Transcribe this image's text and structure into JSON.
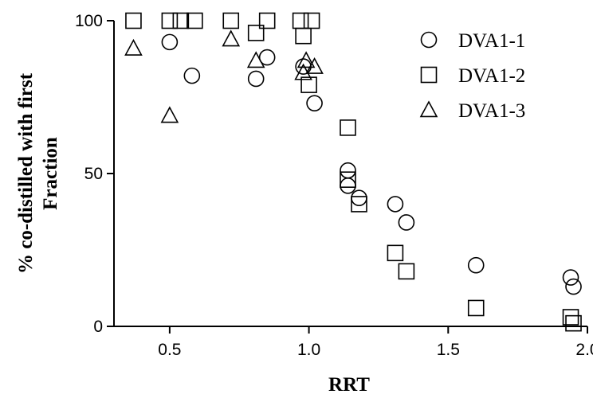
{
  "chart_data": {
    "type": "scatter",
    "title": "",
    "xlabel": "RRT",
    "ylabel": [
      "% co-distilled with first",
      "Fraction"
    ],
    "xlim": [
      0.3,
      2.0
    ],
    "ylim": [
      0,
      100
    ],
    "xticks": [
      "0.5",
      "1.0",
      "1.5",
      "2.0"
    ],
    "yticks": [
      "0",
      "50",
      "100"
    ],
    "grid": false,
    "legend_position": "top-right",
    "series": [
      {
        "name": "DVA1-1",
        "marker": "circle",
        "x": [
          0.5,
          0.58,
          0.81,
          0.85,
          0.98,
          1.02,
          1.14,
          1.14,
          1.18,
          1.31,
          1.35,
          1.6,
          1.94,
          1.95
        ],
        "y": [
          93,
          82,
          81,
          88,
          85,
          73,
          46,
          51,
          42,
          40,
          34,
          20,
          16,
          13
        ]
      },
      {
        "name": "DVA1-2",
        "marker": "square",
        "x": [
          0.37,
          0.5,
          0.54,
          0.59,
          0.72,
          0.81,
          0.85,
          0.97,
          0.98,
          1.0,
          1.01,
          1.14,
          1.14,
          1.18,
          1.31,
          1.35,
          1.6,
          1.94,
          1.95
        ],
        "y": [
          100,
          100,
          100,
          100,
          100,
          96,
          100,
          100,
          95,
          79,
          100,
          65,
          48,
          40,
          24,
          18,
          6,
          3,
          1
        ]
      },
      {
        "name": "DVA1-3",
        "marker": "triangle",
        "x": [
          0.37,
          0.5,
          0.72,
          0.81,
          0.98,
          0.99,
          1.02
        ],
        "y": [
          91,
          69,
          94,
          87,
          83,
          87,
          85
        ]
      }
    ]
  }
}
